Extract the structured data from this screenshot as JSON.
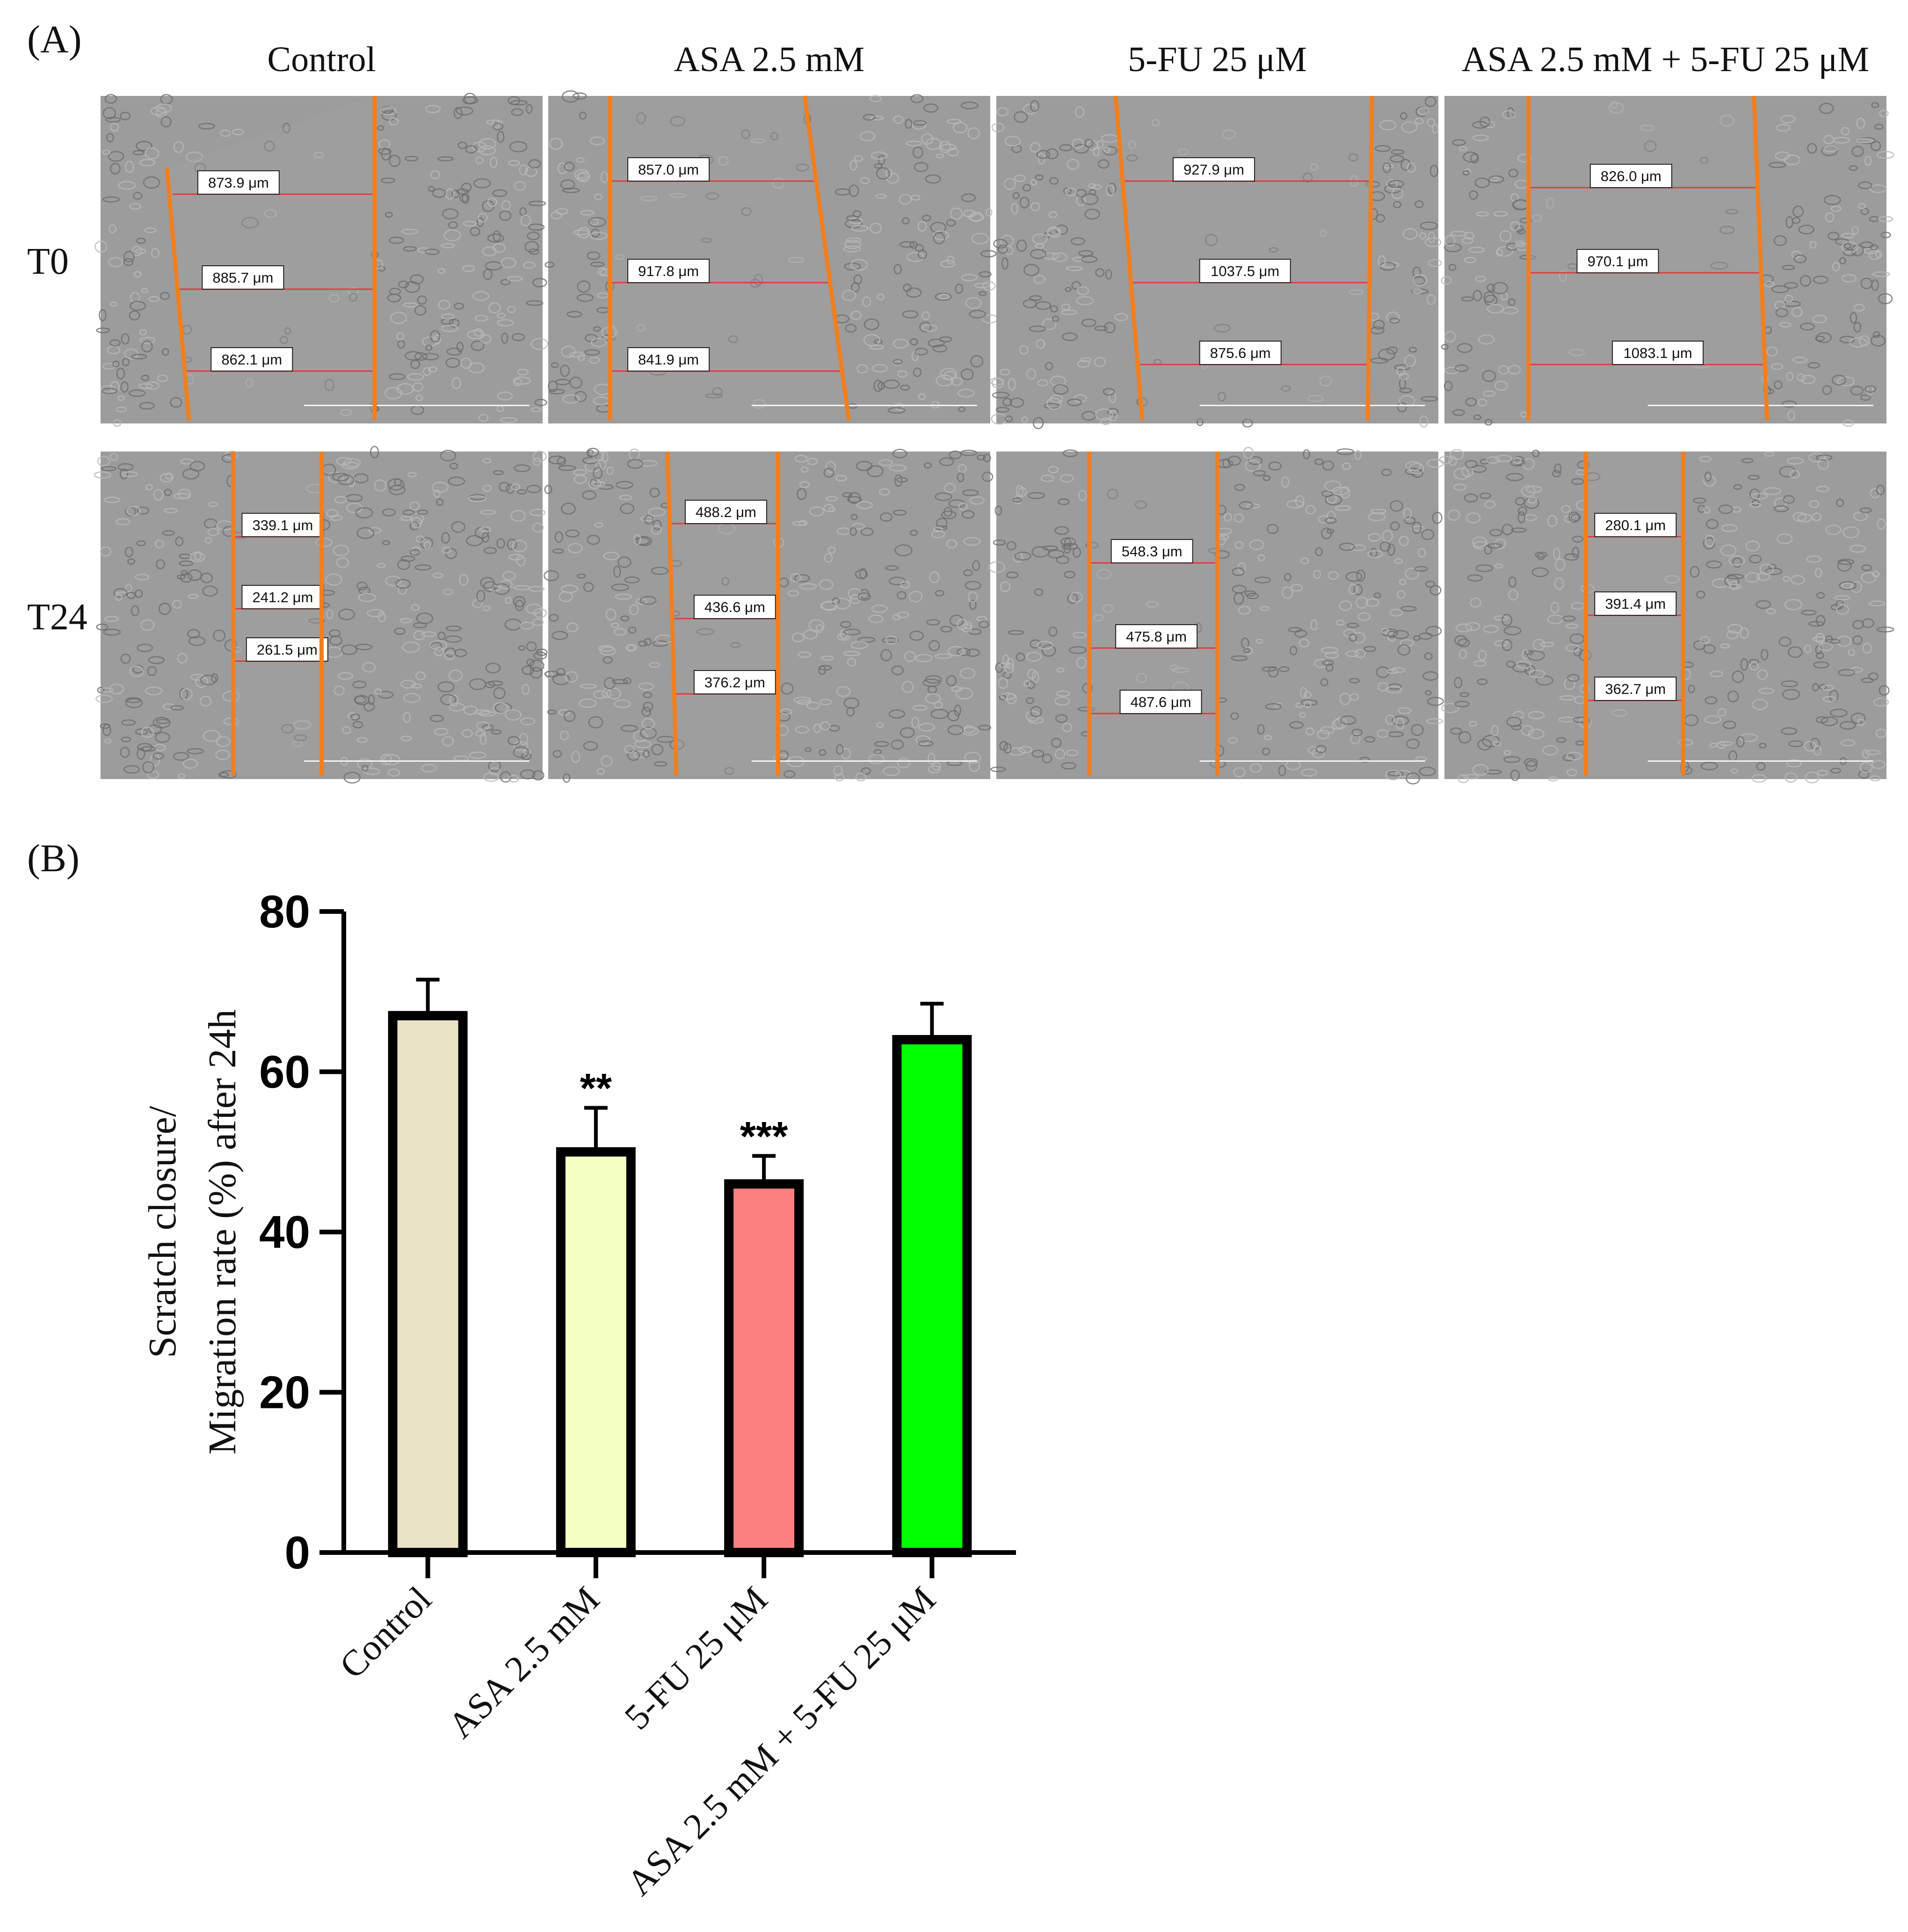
{
  "panel_a": {
    "label": "(A)",
    "columns": [
      "Control",
      "ASA 2.5 mM",
      "5-FU 25 μM",
      "ASA 2.5 mM + 5-FU 25 μM"
    ],
    "rows": [
      {
        "label": "T0",
        "cells": [
          {
            "measurements": [
              "873.9 μm",
              "885.7 μm",
              "862.1 μm"
            ]
          },
          {
            "measurements": [
              "857.0 μm",
              "917.8 μm",
              "841.9 μm"
            ]
          },
          {
            "measurements": [
              "927.9 μm",
              "1037.5 μm",
              "875.6 μm"
            ]
          },
          {
            "measurements": [
              "826.0 μm",
              "970.1 μm",
              "1083.1 μm"
            ]
          }
        ]
      },
      {
        "label": "T24",
        "cells": [
          {
            "measurements": [
              "339.1 μm",
              "241.2 μm",
              "261.5 μm"
            ]
          },
          {
            "measurements": [
              "488.2 μm",
              "436.6 μm",
              "376.2 μm"
            ]
          },
          {
            "measurements": [
              "548.3 μm",
              "475.8 μm",
              "487.6 μm"
            ]
          },
          {
            "measurements": [
              "280.1 μm",
              "391.4 μm",
              "362.7 μm"
            ]
          }
        ]
      }
    ],
    "colors": {
      "edge_line": "#f07f1f",
      "measure_line": "#e23b3b",
      "image_bg": "#9c9c9c"
    }
  },
  "panel_b": {
    "label": "(B)"
  },
  "chart_data": {
    "type": "bar",
    "title": "",
    "categories": [
      "Control",
      "ASA 2.5 mM",
      "5-FU 25 μM",
      "ASA 2.5 mM + 5-FU 25 μM"
    ],
    "values": [
      67,
      50,
      46,
      64
    ],
    "errors": [
      4.5,
      5.5,
      3.5,
      4.5
    ],
    "significance": [
      "",
      "**",
      "***",
      ""
    ],
    "colors": [
      "#ebe3c6",
      "#f4ffc2",
      "#fc807f",
      "#00ff00"
    ],
    "ylabel_line1": "Scratch closure/",
    "ylabel_line2": "Migration rate (%) after 24h",
    "xlabel": "",
    "ylim": [
      0,
      80
    ],
    "yticks": [
      0,
      20,
      40,
      60,
      80
    ]
  }
}
